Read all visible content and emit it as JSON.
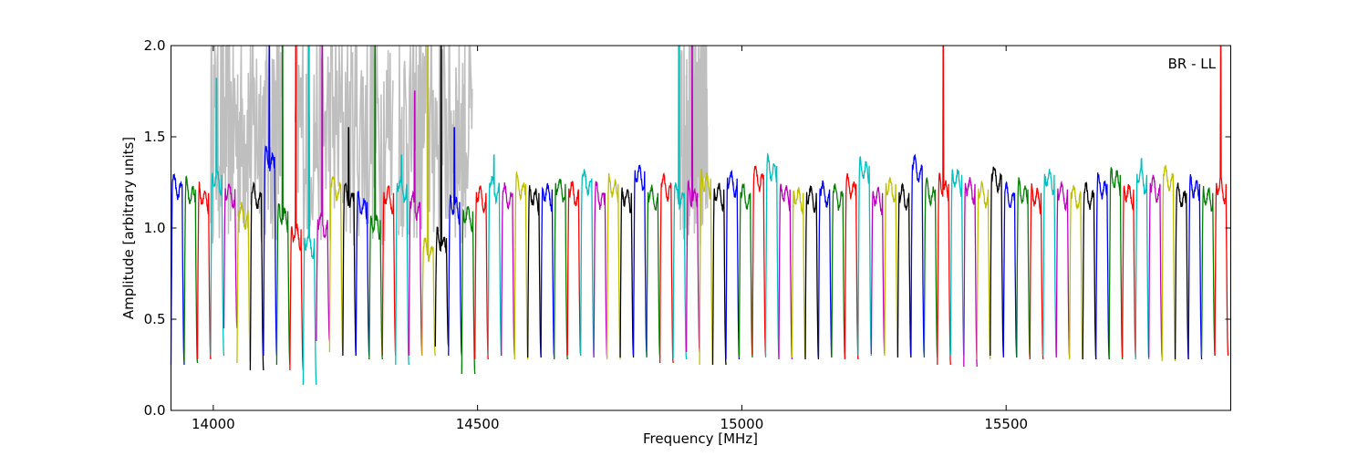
{
  "chart_data": {
    "type": "line",
    "title": "",
    "xlabel": "Frequency [MHz]",
    "ylabel": "Amplitude [arbitrary units]",
    "annotation": "BR - LL",
    "xlim": [
      13920,
      15925
    ],
    "ylim": [
      0.0,
      2.0
    ],
    "xticks": [
      14000,
      14500,
      15000,
      15500
    ],
    "yticks": [
      0.0,
      0.5,
      1.0,
      1.5,
      2.0
    ],
    "xtick_labels": [
      "14000",
      "14500",
      "15000",
      "15500"
    ],
    "ytick_labels": [
      "0.0",
      "0.5",
      "1.0",
      "1.5",
      "2.0"
    ],
    "grid": false,
    "color_cycle": [
      "#0000ff",
      "#007f00",
      "#ff0000",
      "#00bfbf",
      "#bf00bf",
      "#bfbf00",
      "#000000"
    ],
    "flagged_color": "#bfbfbf",
    "channel_width_mhz": 25,
    "channels": [
      {
        "start": 13920,
        "level": 1.25,
        "dip": 0.25
      },
      {
        "start": 13945,
        "level": 1.22,
        "dip": 0.26
      },
      {
        "start": 13970,
        "level": 1.2,
        "dip": 0.28
      },
      {
        "start": 13995,
        "level": 1.3,
        "dip": 0.3,
        "peak": 1.82
      },
      {
        "start": 14020,
        "level": 1.22,
        "dip": 0.45
      },
      {
        "start": 14045,
        "level": 1.1,
        "dip": 0.26
      },
      {
        "start": 14070,
        "level": 1.2,
        "dip": 0.22
      },
      {
        "start": 14095,
        "level": 1.4,
        "dip": 0.3,
        "peak": 2.0
      },
      {
        "start": 14120,
        "level": 1.1,
        "dip": 0.25,
        "peak": 2.0
      },
      {
        "start": 14145,
        "level": 1.0,
        "dip": 0.22,
        "peak": 2.0
      },
      {
        "start": 14170,
        "level": 0.95,
        "dip": 0.14,
        "peak": 2.0
      },
      {
        "start": 14195,
        "level": 1.05,
        "dip": 0.38,
        "peak": 2.0
      },
      {
        "start": 14220,
        "level": 1.25,
        "dip": 0.32
      },
      {
        "start": 14245,
        "level": 1.2,
        "dip": 0.3,
        "peak": 1.55
      },
      {
        "start": 14270,
        "level": 1.15,
        "dip": 0.3
      },
      {
        "start": 14295,
        "level": 1.05,
        "dip": 0.28,
        "peak": 2.0
      },
      {
        "start": 14320,
        "level": 1.2,
        "dip": 0.3
      },
      {
        "start": 14345,
        "level": 1.25,
        "dip": 0.25,
        "peak": 1.4
      },
      {
        "start": 14370,
        "level": 1.15,
        "dip": 0.3,
        "peak": 1.75
      },
      {
        "start": 14395,
        "level": 0.9,
        "dip": 0.3,
        "peak": 2.0
      },
      {
        "start": 14420,
        "level": 0.95,
        "dip": 0.35,
        "peak": 2.0
      },
      {
        "start": 14445,
        "level": 1.15,
        "dip": 0.3,
        "peak": 1.55
      },
      {
        "start": 14470,
        "level": 1.1,
        "dip": 0.2
      },
      {
        "start": 14495,
        "level": 1.2,
        "dip": 0.28
      },
      {
        "start": 14520,
        "level": 1.25,
        "dip": 0.3,
        "peak": 1.4
      },
      {
        "start": 14545,
        "level": 1.2,
        "dip": 0.3
      },
      {
        "start": 14570,
        "level": 1.25,
        "dip": 0.28
      },
      {
        "start": 14595,
        "level": 1.2,
        "dip": 0.29
      },
      {
        "start": 14620,
        "level": 1.22,
        "dip": 0.29
      },
      {
        "start": 14645,
        "level": 1.25,
        "dip": 0.28
      },
      {
        "start": 14670,
        "level": 1.22,
        "dip": 0.3
      },
      {
        "start": 14695,
        "level": 1.28,
        "dip": 0.3
      },
      {
        "start": 14720,
        "level": 1.2,
        "dip": 0.29
      },
      {
        "start": 14745,
        "level": 1.25,
        "dip": 0.28
      },
      {
        "start": 14770,
        "level": 1.2,
        "dip": 0.29
      },
      {
        "start": 14795,
        "level": 1.32,
        "dip": 0.3
      },
      {
        "start": 14820,
        "level": 1.2,
        "dip": 0.29
      },
      {
        "start": 14845,
        "level": 1.25,
        "dip": 0.26
      },
      {
        "start": 14870,
        "level": 1.2,
        "dip": 0.28,
        "peak": 2.0
      },
      {
        "start": 14895,
        "level": 1.2,
        "dip": 0.32,
        "peak": 2.0
      },
      {
        "start": 14920,
        "level": 1.28,
        "dip": 0.25
      },
      {
        "start": 14945,
        "level": 1.22,
        "dip": 0.25
      },
      {
        "start": 14970,
        "level": 1.28,
        "dip": 0.28
      },
      {
        "start": 14995,
        "level": 1.2,
        "dip": 0.29
      },
      {
        "start": 15020,
        "level": 1.3,
        "dip": 0.3
      },
      {
        "start": 15045,
        "level": 1.35,
        "dip": 0.29
      },
      {
        "start": 15070,
        "level": 1.22,
        "dip": 0.28
      },
      {
        "start": 15095,
        "level": 1.2,
        "dip": 0.29
      },
      {
        "start": 15120,
        "level": 1.2,
        "dip": 0.28
      },
      {
        "start": 15145,
        "level": 1.22,
        "dip": 0.29
      },
      {
        "start": 15170,
        "level": 1.2,
        "dip": 0.29
      },
      {
        "start": 15195,
        "level": 1.25,
        "dip": 0.28
      },
      {
        "start": 15220,
        "level": 1.35,
        "dip": 0.3
      },
      {
        "start": 15245,
        "level": 1.2,
        "dip": 0.31
      },
      {
        "start": 15270,
        "level": 1.25,
        "dip": 0.3
      },
      {
        "start": 15295,
        "level": 1.2,
        "dip": 0.29
      },
      {
        "start": 15320,
        "level": 1.35,
        "dip": 0.3
      },
      {
        "start": 15345,
        "level": 1.22,
        "dip": 0.29
      },
      {
        "start": 15370,
        "level": 1.25,
        "dip": 0.25,
        "peak": 2.0
      },
      {
        "start": 15395,
        "level": 1.3,
        "dip": 0.3
      },
      {
        "start": 15420,
        "level": 1.25,
        "dip": 0.24
      },
      {
        "start": 15445,
        "level": 1.22,
        "dip": 0.28
      },
      {
        "start": 15470,
        "level": 1.3,
        "dip": 0.3
      },
      {
        "start": 15495,
        "level": 1.2,
        "dip": 0.29
      },
      {
        "start": 15520,
        "level": 1.22,
        "dip": 0.29
      },
      {
        "start": 15545,
        "level": 1.2,
        "dip": 0.28
      },
      {
        "start": 15570,
        "level": 1.3,
        "dip": 0.3
      },
      {
        "start": 15595,
        "level": 1.22,
        "dip": 0.29
      },
      {
        "start": 15620,
        "level": 1.2,
        "dip": 0.28
      },
      {
        "start": 15645,
        "level": 1.2,
        "dip": 0.28
      },
      {
        "start": 15670,
        "level": 1.25,
        "dip": 0.28
      },
      {
        "start": 15695,
        "level": 1.3,
        "dip": 0.28
      },
      {
        "start": 15720,
        "level": 1.22,
        "dip": 0.29
      },
      {
        "start": 15745,
        "level": 1.3,
        "dip": 0.28,
        "peak": 1.38
      },
      {
        "start": 15770,
        "level": 1.25,
        "dip": 0.29
      },
      {
        "start": 15795,
        "level": 1.3,
        "dip": 0.27
      },
      {
        "start": 15820,
        "level": 1.2,
        "dip": 0.28
      },
      {
        "start": 15845,
        "level": 1.25,
        "dip": 0.28
      },
      {
        "start": 15870,
        "level": 1.2,
        "dip": 0.3
      },
      {
        "start": 15895,
        "level": 1.25,
        "dip": 0.3,
        "peak": 2.0
      }
    ],
    "flagged_regions": [
      {
        "x0": 13995,
        "x1": 14130,
        "max": 2.0
      },
      {
        "x0": 14155,
        "x1": 14340,
        "max": 2.0
      },
      {
        "x0": 14350,
        "x1": 14490,
        "max": 2.0
      },
      {
        "x0": 14880,
        "x1": 14935,
        "max": 1.95
      }
    ]
  }
}
